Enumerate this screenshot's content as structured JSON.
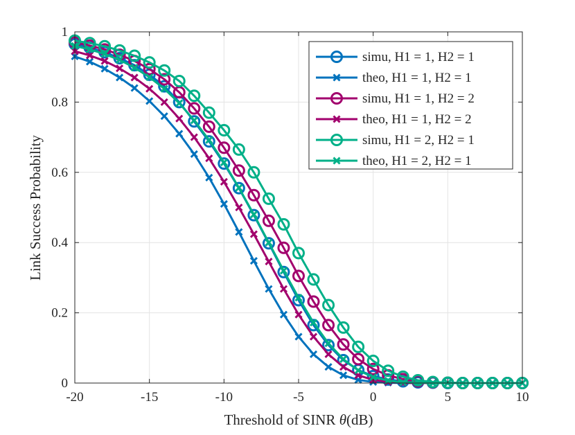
{
  "chart_data": {
    "type": "line",
    "title": "",
    "xlabel_prefix": "Threshold of SINR",
    "xlabel_symbol": "θ",
    "xlabel_suffix": "(dB)",
    "ylabel": "Link Success Probability",
    "xlim": [
      -20,
      10
    ],
    "ylim": [
      0,
      1
    ],
    "xticks": [
      -20,
      -15,
      -10,
      -5,
      0,
      5,
      10
    ],
    "xtick_labels": [
      "-20",
      "-15",
      "-10",
      "-5",
      "0",
      "5",
      "10"
    ],
    "yticks": [
      0,
      0.2,
      0.4,
      0.6,
      0.8,
      1
    ],
    "ytick_labels": [
      "0",
      "0.2",
      "0.4",
      "0.6",
      "0.8",
      "1"
    ],
    "grid": true,
    "legend_position": "top-right",
    "x": [
      -20,
      -19,
      -18,
      -17,
      -16,
      -15,
      -14,
      -13,
      -12,
      -11,
      -10,
      -9,
      -8,
      -7,
      -6,
      -5,
      -4,
      -3,
      -2,
      -1,
      0,
      1,
      2,
      3,
      4,
      5,
      6,
      7,
      8,
      9,
      10
    ],
    "series": [
      {
        "name": "simu, H1 = 1, H2 = 1",
        "color": "#0072BD",
        "marker": "circle",
        "values": [
          0.965,
          0.955,
          0.942,
          0.925,
          0.905,
          0.878,
          0.845,
          0.8,
          0.745,
          0.688,
          0.625,
          0.555,
          0.478,
          0.398,
          0.316,
          0.236,
          0.165,
          0.108,
          0.065,
          0.037,
          0.02,
          0.01,
          0.005,
          0.002,
          0.001,
          0.0,
          0.0,
          0.0,
          0.0,
          0.0,
          0.0
        ]
      },
      {
        "name": "theo, H1 = 1, H2 = 1",
        "color": "#0072BD",
        "marker": "x",
        "values": [
          0.93,
          0.915,
          0.895,
          0.87,
          0.84,
          0.803,
          0.76,
          0.71,
          0.652,
          0.585,
          0.51,
          0.43,
          0.348,
          0.268,
          0.195,
          0.132,
          0.082,
          0.046,
          0.022,
          0.009,
          0.003,
          0.001,
          0.0,
          0.0,
          0.0,
          0.0,
          0.0,
          0.0,
          0.0,
          0.0,
          0.0
        ]
      },
      {
        "name": "simu, H1 = 1, H2 = 2",
        "color": "#A2006D",
        "marker": "circle",
        "values": [
          0.97,
          0.961,
          0.95,
          0.935,
          0.917,
          0.894,
          0.865,
          0.828,
          0.782,
          0.73,
          0.67,
          0.605,
          0.535,
          0.462,
          0.385,
          0.305,
          0.232,
          0.165,
          0.11,
          0.068,
          0.04,
          0.022,
          0.011,
          0.005,
          0.002,
          0.001,
          0.0,
          0.0,
          0.0,
          0.0,
          0.0
        ]
      },
      {
        "name": "theo, H1 = 1, H2 = 2",
        "color": "#A2006D",
        "marker": "x",
        "values": [
          0.945,
          0.933,
          0.917,
          0.896,
          0.87,
          0.838,
          0.8,
          0.753,
          0.7,
          0.64,
          0.573,
          0.5,
          0.424,
          0.346,
          0.268,
          0.195,
          0.132,
          0.082,
          0.046,
          0.022,
          0.009,
          0.003,
          0.001,
          0.0,
          0.0,
          0.0,
          0.0,
          0.0,
          0.0,
          0.0,
          0.0
        ]
      },
      {
        "name": "simu, H1 = 2, H2 = 1",
        "color": "#00B088",
        "marker": "circle",
        "values": [
          0.975,
          0.968,
          0.959,
          0.947,
          0.932,
          0.913,
          0.89,
          0.86,
          0.818,
          0.77,
          0.72,
          0.665,
          0.6,
          0.525,
          0.452,
          0.37,
          0.295,
          0.222,
          0.158,
          0.103,
          0.063,
          0.035,
          0.018,
          0.008,
          0.003,
          0.001,
          0.0,
          0.0,
          0.0,
          0.0,
          0.0
        ]
      },
      {
        "name": "theo, H1 = 2, H2 = 1",
        "color": "#00B088",
        "marker": "x",
        "values": [
          0.96,
          0.95,
          0.937,
          0.92,
          0.898,
          0.871,
          0.838,
          0.797,
          0.748,
          0.692,
          0.628,
          0.556,
          0.48,
          0.4,
          0.32,
          0.243,
          0.172,
          0.113,
          0.068,
          0.036,
          0.017,
          0.007,
          0.002,
          0.001,
          0.0,
          0.0,
          0.0,
          0.0,
          0.0,
          0.0,
          0.0
        ]
      }
    ]
  }
}
